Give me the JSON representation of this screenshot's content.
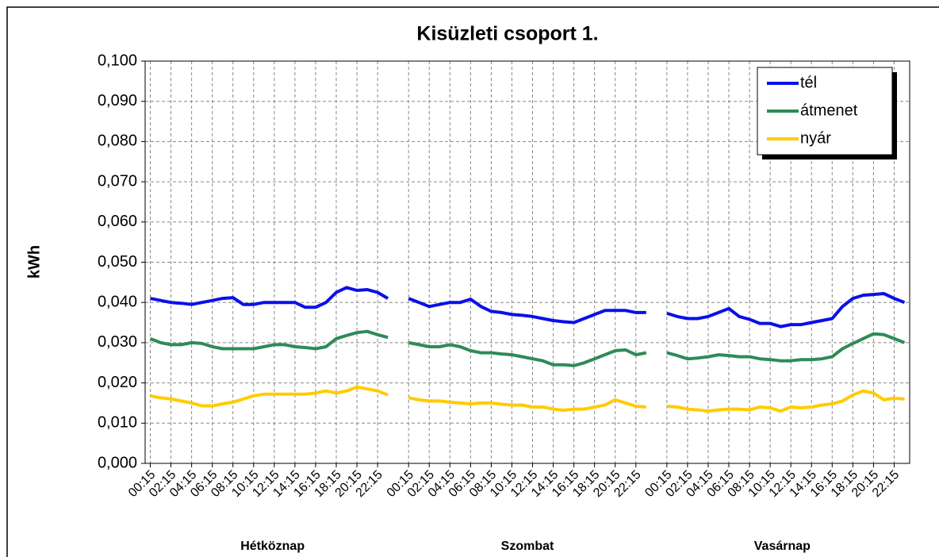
{
  "chart_data": {
    "type": "line",
    "title": "Kisüzleti csoport 1.",
    "y_label": "kWh",
    "categories": [
      "00:15",
      null,
      "02:15",
      null,
      "04:15",
      null,
      "06:15",
      null,
      "08:15",
      null,
      "10:15",
      null,
      "12:15",
      null,
      "14:15",
      null,
      "16:15",
      null,
      "18:15",
      null,
      "20:15",
      null,
      "22:15",
      null,
      null,
      "00:15",
      null,
      "02:15",
      null,
      "04:15",
      null,
      "06:15",
      null,
      "08:15",
      null,
      "10:15",
      null,
      "12:15",
      null,
      "14:15",
      null,
      "16:15",
      null,
      "18:15",
      null,
      "20:15",
      null,
      "22:15",
      null,
      null,
      "00:15",
      null,
      "02:15",
      null,
      "04:15",
      null,
      "06:15",
      null,
      "08:15",
      null,
      "10:15",
      null,
      "12:15",
      null,
      "14:15",
      null,
      "16:15",
      null,
      "18:15",
      null,
      "20:15",
      null,
      "22:15",
      null
    ],
    "groups": [
      "Hétköznap",
      "Szombat",
      "Vasárnap"
    ],
    "series": [
      {
        "name": "tél",
        "color": "#0a10e8",
        "values": [
          0.041,
          0.0405,
          0.04,
          0.0398,
          0.0395,
          0.04,
          0.0405,
          0.041,
          0.0412,
          0.0395,
          0.0395,
          0.04,
          0.04,
          0.04,
          0.04,
          0.0388,
          0.0388,
          0.04,
          0.0425,
          0.0437,
          0.043,
          0.0432,
          0.0425,
          0.041,
          null,
          0.041,
          0.04,
          0.039,
          0.0395,
          0.04,
          0.04,
          0.0408,
          0.039,
          0.0378,
          0.0375,
          0.037,
          0.0368,
          0.0365,
          0.036,
          0.0355,
          0.0352,
          0.035,
          0.036,
          0.037,
          0.038,
          0.038,
          0.038,
          0.0375,
          0.0375,
          null,
          0.0373,
          0.0365,
          0.036,
          0.036,
          0.0365,
          0.0375,
          0.0385,
          0.0365,
          0.0358,
          0.0348,
          0.0348,
          0.034,
          0.0345,
          0.0345,
          0.035,
          0.0355,
          0.036,
          0.039,
          0.041,
          0.0418,
          0.042,
          0.0422,
          0.041,
          0.04
        ]
      },
      {
        "name": "átmenet",
        "color": "#2e8b57",
        "values": [
          0.031,
          0.03,
          0.0295,
          0.0295,
          0.03,
          0.0298,
          0.029,
          0.0285,
          0.0285,
          0.0285,
          0.0285,
          0.029,
          0.0295,
          0.0295,
          0.029,
          0.0288,
          0.0285,
          0.029,
          0.031,
          0.0318,
          0.0325,
          0.0328,
          0.032,
          0.0313,
          null,
          0.03,
          0.0295,
          0.029,
          0.029,
          0.0295,
          0.029,
          0.028,
          0.0275,
          0.0275,
          0.0272,
          0.027,
          0.0265,
          0.026,
          0.0255,
          0.0245,
          0.0245,
          0.0243,
          0.025,
          0.026,
          0.027,
          0.028,
          0.0282,
          0.027,
          0.0275,
          null,
          0.0275,
          0.0268,
          0.026,
          0.0262,
          0.0265,
          0.027,
          0.0268,
          0.0265,
          0.0265,
          0.026,
          0.0258,
          0.0255,
          0.0255,
          0.0258,
          0.0258,
          0.026,
          0.0265,
          0.0285,
          0.0298,
          0.031,
          0.0322,
          0.032,
          0.031,
          0.03
        ]
      },
      {
        "name": "nyár",
        "color": "#ffcc00",
        "values": [
          0.0168,
          0.0163,
          0.016,
          0.0155,
          0.015,
          0.0143,
          0.0143,
          0.0148,
          0.0152,
          0.016,
          0.0168,
          0.0172,
          0.0172,
          0.0172,
          0.0172,
          0.0172,
          0.0175,
          0.018,
          0.0175,
          0.018,
          0.019,
          0.0185,
          0.018,
          0.017,
          null,
          0.0163,
          0.0158,
          0.0155,
          0.0155,
          0.0152,
          0.015,
          0.0148,
          0.015,
          0.015,
          0.0147,
          0.0145,
          0.0145,
          0.014,
          0.014,
          0.0135,
          0.0132,
          0.0135,
          0.0135,
          0.014,
          0.0145,
          0.0158,
          0.015,
          0.0142,
          0.014,
          null,
          0.0142,
          0.014,
          0.0135,
          0.0133,
          0.013,
          0.0133,
          0.0135,
          0.0135,
          0.0133,
          0.014,
          0.0138,
          0.013,
          0.014,
          0.0138,
          0.014,
          0.0145,
          0.0148,
          0.0155,
          0.017,
          0.018,
          0.0175,
          0.0158,
          0.0162,
          0.016
        ]
      }
    ],
    "ylim": [
      0,
      0.1
    ],
    "yticks": [
      {
        "value": 0,
        "label": "0,000"
      },
      {
        "value": 0.01,
        "label": "0,010"
      },
      {
        "value": 0.02,
        "label": "0,020"
      },
      {
        "value": 0.03,
        "label": "0,030"
      },
      {
        "value": 0.04,
        "label": "0,040"
      },
      {
        "value": 0.05,
        "label": "0,050"
      },
      {
        "value": 0.06,
        "label": "0,060"
      },
      {
        "value": 0.07,
        "label": "0,070"
      },
      {
        "value": 0.08,
        "label": "0,080"
      },
      {
        "value": 0.09,
        "label": "0,090"
      },
      {
        "value": 0.1,
        "label": "0,100"
      }
    ],
    "grid": true,
    "legend": "top-right"
  }
}
